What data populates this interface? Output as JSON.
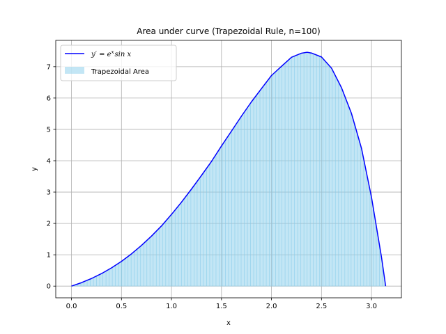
{
  "chart_data": {
    "type": "area",
    "title": "Area under curve (Trapezoidal Rule, n=100)",
    "xlabel": "x",
    "ylabel": "y",
    "xlim": [
      -0.157,
      3.299
    ],
    "ylim": [
      -0.373,
      7.84
    ],
    "xticks": [
      0.0,
      0.5,
      1.0,
      1.5,
      2.0,
      2.5,
      3.0
    ],
    "xtick_labels": [
      "0.0",
      "0.5",
      "1.0",
      "1.5",
      "2.0",
      "2.5",
      "3.0"
    ],
    "yticks": [
      0,
      1,
      2,
      3,
      4,
      5,
      6,
      7
    ],
    "ytick_labels": [
      "0",
      "1",
      "2",
      "3",
      "4",
      "5",
      "6",
      "7"
    ],
    "grid": true,
    "legend_position": "upper-left",
    "n_trapezoids": 100,
    "series": [
      {
        "name": "y' = e^x sin x",
        "legend_label": "y′ = e",
        "legend_label_sup": "x",
        "legend_label_rest": "sin x",
        "kind": "line",
        "color": "#0000ff",
        "x": [
          0.0,
          0.1,
          0.2,
          0.3,
          0.4,
          0.5,
          0.6,
          0.7,
          0.8,
          0.9,
          1.0,
          1.1,
          1.2,
          1.3,
          1.4,
          1.5,
          1.6,
          1.7,
          1.8,
          1.9,
          2.0,
          2.1,
          2.2,
          2.3,
          2.356,
          2.4,
          2.5,
          2.6,
          2.7,
          2.8,
          2.9,
          3.0,
          3.1,
          3.1416
        ],
        "y": [
          0.0,
          0.11,
          0.243,
          0.399,
          0.581,
          0.79,
          1.029,
          1.298,
          1.596,
          1.92,
          2.287,
          2.678,
          3.095,
          3.531,
          3.977,
          4.47,
          4.946,
          5.423,
          5.881,
          6.302,
          6.719,
          7.011,
          7.3,
          7.431,
          7.46,
          7.436,
          7.31,
          6.956,
          6.331,
          5.506,
          4.395,
          2.834,
          0.923,
          0.0
        ]
      },
      {
        "name": "Trapezoidal Area",
        "kind": "area",
        "color": "#87ceeb",
        "alpha": 0.5
      }
    ]
  }
}
